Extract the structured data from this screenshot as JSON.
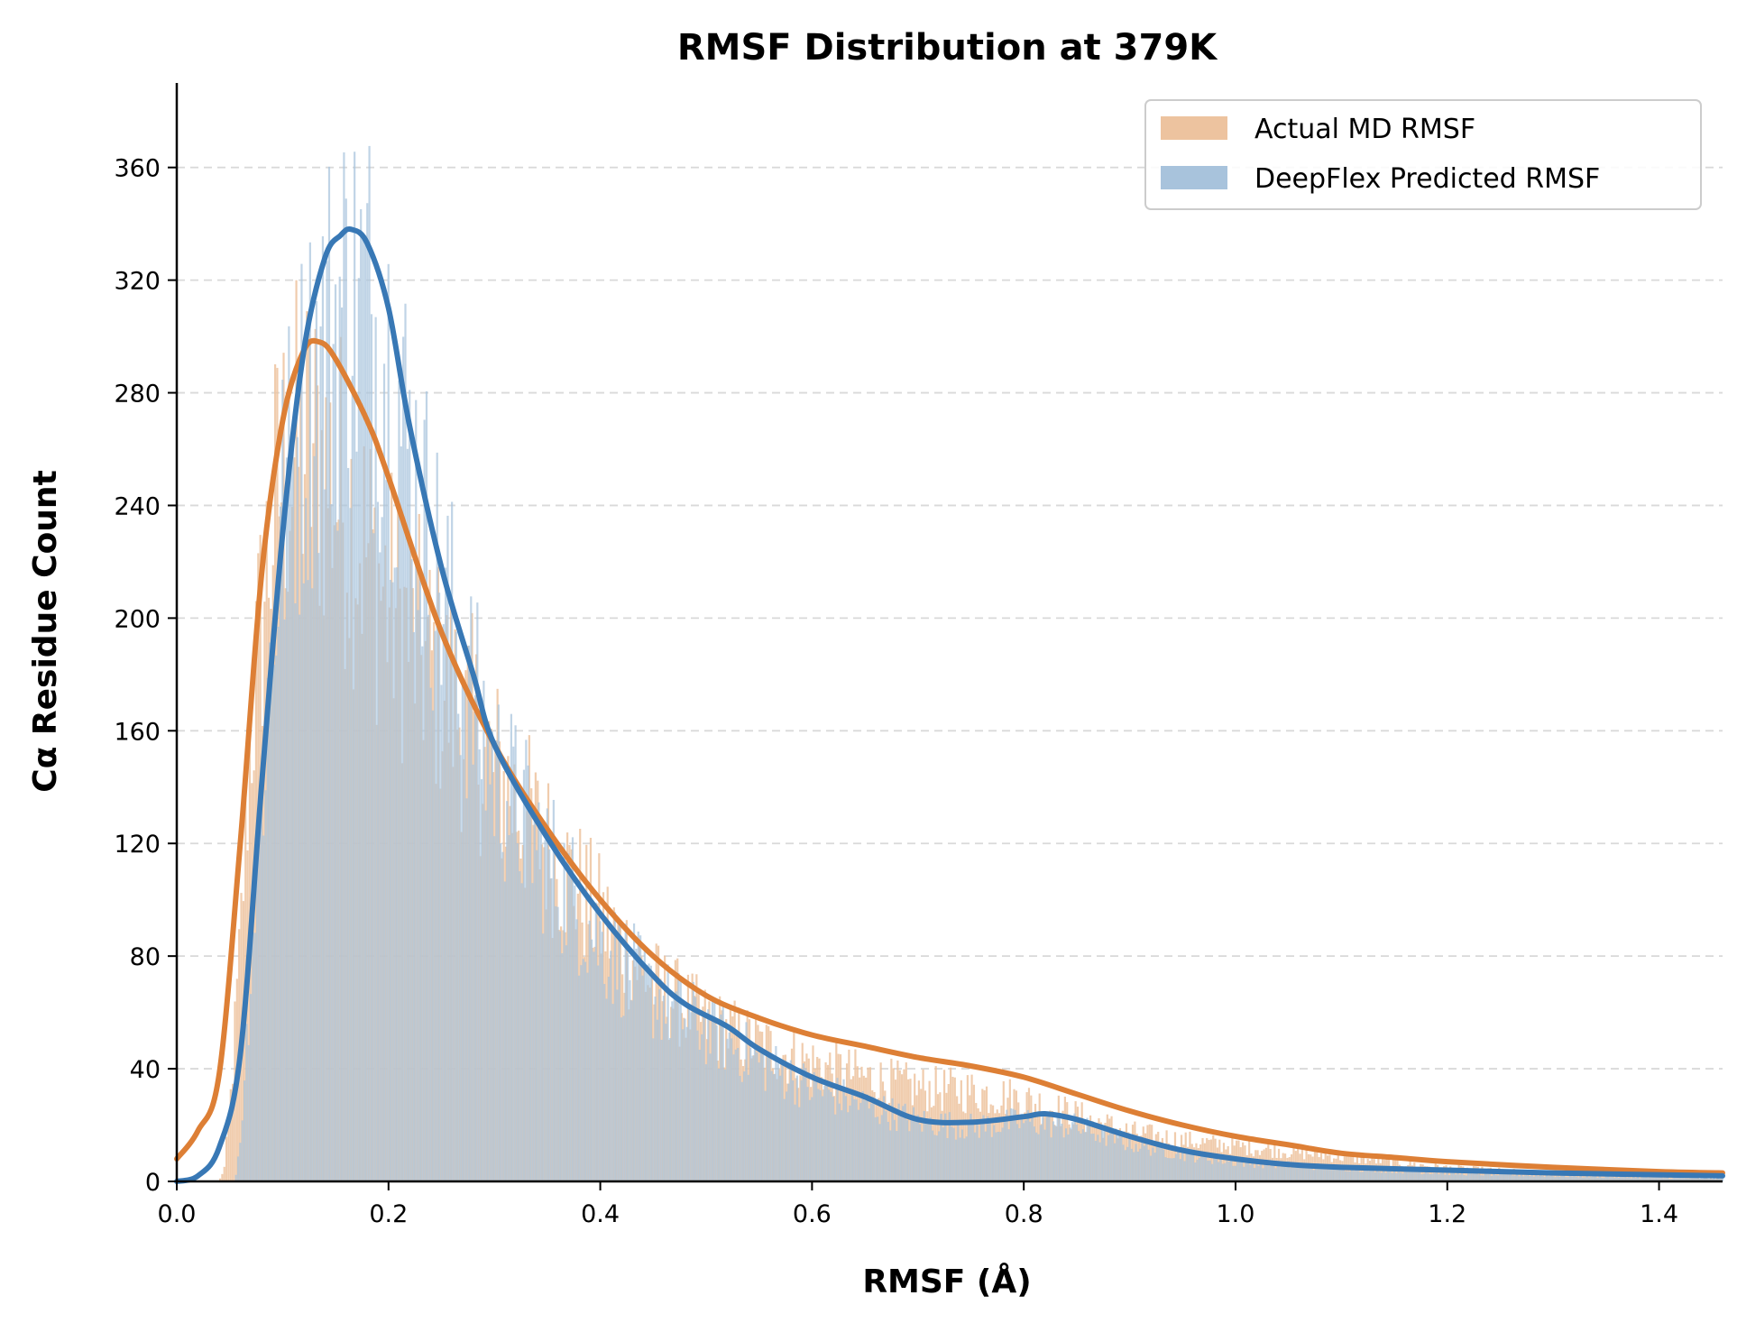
{
  "chart_data": {
    "type": "histogram",
    "title": "RMSF Distribution at 379K",
    "xlabel": "RMSF (Å)",
    "ylabel": "Cα Residue Count",
    "xlim": [
      0.0,
      1.46
    ],
    "ylim": [
      0,
      390
    ],
    "xticks": [
      "0.0",
      "0.2",
      "0.4",
      "0.6",
      "0.8",
      "1.0",
      "1.2",
      "1.4"
    ],
    "yticks": [
      "0",
      "40",
      "80",
      "120",
      "160",
      "200",
      "240",
      "280",
      "320",
      "360"
    ],
    "grid": "y-dashed",
    "legend_position": "top-right",
    "bin_width": 0.002,
    "series": [
      {
        "name": "Actual MD RMSF",
        "color": "#dd7f35",
        "fill_color": "#edc39f",
        "hist_envelope": [
          [
            0.04,
            0
          ],
          [
            0.045,
            5
          ],
          [
            0.05,
            25
          ],
          [
            0.055,
            55
          ],
          [
            0.06,
            85
          ],
          [
            0.065,
            130
          ],
          [
            0.07,
            165
          ],
          [
            0.08,
            205
          ],
          [
            0.09,
            240
          ],
          [
            0.1,
            260
          ],
          [
            0.12,
            268
          ],
          [
            0.14,
            262
          ],
          [
            0.16,
            248
          ],
          [
            0.18,
            230
          ],
          [
            0.2,
            212
          ],
          [
            0.22,
            200
          ],
          [
            0.25,
            182
          ],
          [
            0.28,
            165
          ],
          [
            0.3,
            150
          ],
          [
            0.35,
            122
          ],
          [
            0.4,
            96
          ],
          [
            0.45,
            72
          ],
          [
            0.5,
            58
          ],
          [
            0.55,
            50
          ],
          [
            0.6,
            43
          ],
          [
            0.65,
            38
          ],
          [
            0.7,
            34
          ],
          [
            0.75,
            33
          ],
          [
            0.8,
            30
          ],
          [
            0.85,
            24
          ],
          [
            0.9,
            18
          ],
          [
            0.95,
            15
          ],
          [
            1.0,
            13
          ],
          [
            1.05,
            11
          ],
          [
            1.1,
            9
          ],
          [
            1.15,
            7
          ],
          [
            1.2,
            5
          ],
          [
            1.3,
            3
          ],
          [
            1.4,
            2
          ],
          [
            1.46,
            1
          ]
        ],
        "kde": [
          [
            0.0,
            8
          ],
          [
            0.02,
            18
          ],
          [
            0.04,
            38
          ],
          [
            0.06,
            120
          ],
          [
            0.08,
            215
          ],
          [
            0.1,
            270
          ],
          [
            0.12,
            295
          ],
          [
            0.135,
            298
          ],
          [
            0.15,
            292
          ],
          [
            0.18,
            270
          ],
          [
            0.2,
            250
          ],
          [
            0.25,
            195
          ],
          [
            0.3,
            155
          ],
          [
            0.35,
            125
          ],
          [
            0.4,
            100
          ],
          [
            0.45,
            80
          ],
          [
            0.5,
            66
          ],
          [
            0.55,
            58
          ],
          [
            0.6,
            52
          ],
          [
            0.65,
            48
          ],
          [
            0.7,
            44
          ],
          [
            0.75,
            41
          ],
          [
            0.8,
            37
          ],
          [
            0.85,
            31
          ],
          [
            0.9,
            25
          ],
          [
            0.95,
            20
          ],
          [
            1.0,
            16
          ],
          [
            1.05,
            13
          ],
          [
            1.1,
            10
          ],
          [
            1.15,
            8.5
          ],
          [
            1.2,
            7
          ],
          [
            1.3,
            5
          ],
          [
            1.4,
            3.5
          ],
          [
            1.46,
            3
          ]
        ]
      },
      {
        "name": "DeepFlex Predicted RMSF",
        "color": "#3878b5",
        "fill_color": "#a8c3dc",
        "hist_envelope": [
          [
            0.055,
            0
          ],
          [
            0.06,
            15
          ],
          [
            0.065,
            45
          ],
          [
            0.07,
            80
          ],
          [
            0.08,
            140
          ],
          [
            0.09,
            200
          ],
          [
            0.1,
            245
          ],
          [
            0.12,
            280
          ],
          [
            0.14,
            305
          ],
          [
            0.16,
            322
          ],
          [
            0.18,
            318
          ],
          [
            0.2,
            300
          ],
          [
            0.22,
            265
          ],
          [
            0.25,
            215
          ],
          [
            0.28,
            175
          ],
          [
            0.3,
            150
          ],
          [
            0.35,
            118
          ],
          [
            0.4,
            88
          ],
          [
            0.45,
            68
          ],
          [
            0.5,
            56
          ],
          [
            0.55,
            44
          ],
          [
            0.6,
            34
          ],
          [
            0.65,
            28
          ],
          [
            0.7,
            22
          ],
          [
            0.75,
            20
          ],
          [
            0.8,
            22
          ],
          [
            0.85,
            20
          ],
          [
            0.9,
            14
          ],
          [
            0.95,
            10
          ],
          [
            1.0,
            7
          ],
          [
            1.05,
            6
          ],
          [
            1.1,
            5
          ],
          [
            1.2,
            3
          ],
          [
            1.3,
            2
          ],
          [
            1.46,
            1
          ]
        ],
        "kde": [
          [
            0.0,
            0
          ],
          [
            0.02,
            2
          ],
          [
            0.04,
            12
          ],
          [
            0.06,
            45
          ],
          [
            0.08,
            140
          ],
          [
            0.1,
            230
          ],
          [
            0.12,
            295
          ],
          [
            0.14,
            328
          ],
          [
            0.155,
            336
          ],
          [
            0.165,
            338
          ],
          [
            0.18,
            333
          ],
          [
            0.2,
            310
          ],
          [
            0.22,
            268
          ],
          [
            0.25,
            218
          ],
          [
            0.28,
            180
          ],
          [
            0.3,
            155
          ],
          [
            0.35,
            122
          ],
          [
            0.4,
            95
          ],
          [
            0.45,
            73
          ],
          [
            0.48,
            63
          ],
          [
            0.52,
            55
          ],
          [
            0.55,
            47
          ],
          [
            0.6,
            37
          ],
          [
            0.65,
            30
          ],
          [
            0.7,
            22
          ],
          [
            0.75,
            21
          ],
          [
            0.8,
            23
          ],
          [
            0.82,
            24
          ],
          [
            0.85,
            22
          ],
          [
            0.9,
            16
          ],
          [
            0.95,
            11
          ],
          [
            1.0,
            8
          ],
          [
            1.05,
            6
          ],
          [
            1.1,
            5
          ],
          [
            1.2,
            4
          ],
          [
            1.3,
            3
          ],
          [
            1.46,
            2
          ]
        ]
      }
    ]
  }
}
